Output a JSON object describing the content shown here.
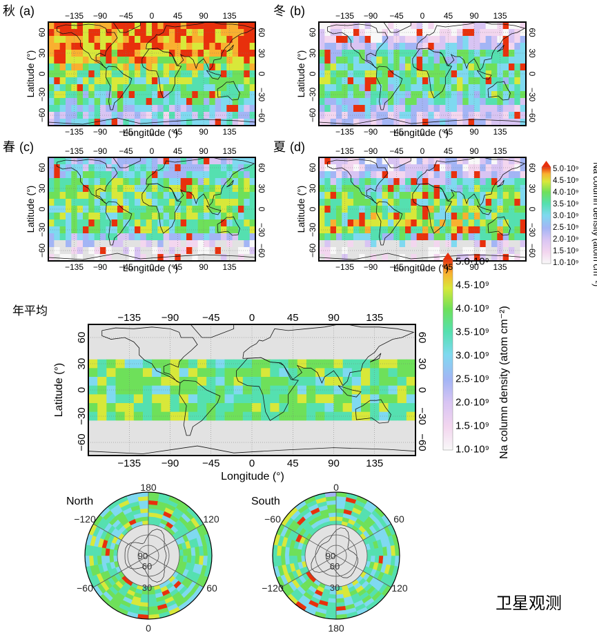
{
  "figure": {
    "panels": [
      {
        "id": "a",
        "season": "秋",
        "letter": "(a)",
        "grid": "autumn"
      },
      {
        "id": "b",
        "season": "冬",
        "letter": "(b)",
        "grid": "winter"
      },
      {
        "id": "c",
        "season": "春",
        "letter": "(c)",
        "grid": "spring"
      },
      {
        "id": "d",
        "season": "夏",
        "letter": "(d)",
        "grid": "summer"
      }
    ],
    "annual_label": "年平均",
    "satellite_label": "卫星观测",
    "north_label": "North",
    "south_label": "South"
  },
  "axes": {
    "xlabel": "Longitude (°)",
    "ylabel": "Latitude (°)",
    "lon_ticks": [
      "−135",
      "−90",
      "−45",
      "0",
      "45",
      "90",
      "135"
    ],
    "lat_ticks_left": [
      "60",
      "30",
      "0",
      "−30",
      "−60"
    ],
    "lat_ticks_right": [
      "60",
      "30",
      "0",
      "−30",
      "−60"
    ]
  },
  "colorbar": {
    "title": "Na column density (atom cm⁻²)",
    "ticks": [
      "5.0·10⁹",
      "4.5·10⁹",
      "4.0·10⁹",
      "3.5·10⁹",
      "3.0·10⁹",
      "2.5·10⁹",
      "2.0·10⁹",
      "1.5·10⁹",
      "1.0·10⁹"
    ],
    "colors": [
      "#f8f8f8",
      "#f3d6ef",
      "#d8c4f3",
      "#a3b5f5",
      "#7fd9f0",
      "#55e0b0",
      "#6ee05a",
      "#d8e83a",
      "#f9b030",
      "#e8300c"
    ]
  },
  "polar": {
    "north_ticks": {
      "top": "180",
      "right": "120",
      "lowright": "60",
      "bottom": "0",
      "lowleft": "−60",
      "left": "−120",
      "inner": [
        "90",
        "60",
        "30"
      ]
    },
    "south_ticks": {
      "top": "0",
      "right": "60",
      "lowright": "120",
      "bottom": "180",
      "lowleft": "−120",
      "left": "−60",
      "inner": [
        "90",
        "60",
        "30"
      ]
    }
  },
  "chart_data": [
    {
      "type": "heatmap",
      "title": "秋 (a)",
      "xlabel": "Longitude (°)",
      "ylabel": "Latitude (°)",
      "xlim": [
        -180,
        180
      ],
      "ylim": [
        -75,
        75
      ],
      "units": "10⁹ atom cm⁻²",
      "lat_bands": [
        60,
        30,
        0,
        -30,
        -60
      ],
      "band_mean": [
        4.8,
        4.6,
        3.6,
        3.3,
        2.4
      ]
    },
    {
      "type": "heatmap",
      "title": "冬 (b)",
      "xlabel": "Longitude (°)",
      "ylabel": "Latitude (°)",
      "xlim": [
        -180,
        180
      ],
      "ylim": [
        -75,
        75
      ],
      "units": "10⁹ atom cm⁻²",
      "lat_bands": [
        60,
        30,
        0,
        -30,
        -60
      ],
      "band_mean": [
        1.2,
        3.0,
        3.4,
        3.2,
        2.0
      ]
    },
    {
      "type": "heatmap",
      "title": "春 (c)",
      "xlabel": "Longitude (°)",
      "ylabel": "Latitude (°)",
      "xlim": [
        -180,
        180
      ],
      "ylim": [
        -75,
        75
      ],
      "units": "10⁹ atom cm⁻²",
      "lat_bands": [
        60,
        30,
        0,
        -30,
        -60
      ],
      "band_mean": [
        2.6,
        3.6,
        3.5,
        3.4,
        1.2
      ]
    },
    {
      "type": "heatmap",
      "title": "夏 (d)",
      "xlabel": "Longitude (°)",
      "ylabel": "Latitude (°)",
      "xlim": [
        -180,
        180
      ],
      "ylim": [
        -75,
        75
      ],
      "units": "10⁹ atom cm⁻²",
      "lat_bands": [
        60,
        30,
        0,
        -30,
        -60
      ],
      "band_mean": [
        1.6,
        3.2,
        3.6,
        3.8,
        1.1
      ]
    },
    {
      "type": "heatmap",
      "title": "年平均",
      "xlabel": "Longitude (°)",
      "ylabel": "Latitude (°)",
      "xlim": [
        -180,
        180
      ],
      "ylim": [
        -75,
        75
      ],
      "units": "10⁹ atom cm⁻²",
      "data_lat_range": [
        -35,
        35
      ],
      "band_mean": [
        3.6,
        3.4,
        3.6
      ]
    }
  ]
}
